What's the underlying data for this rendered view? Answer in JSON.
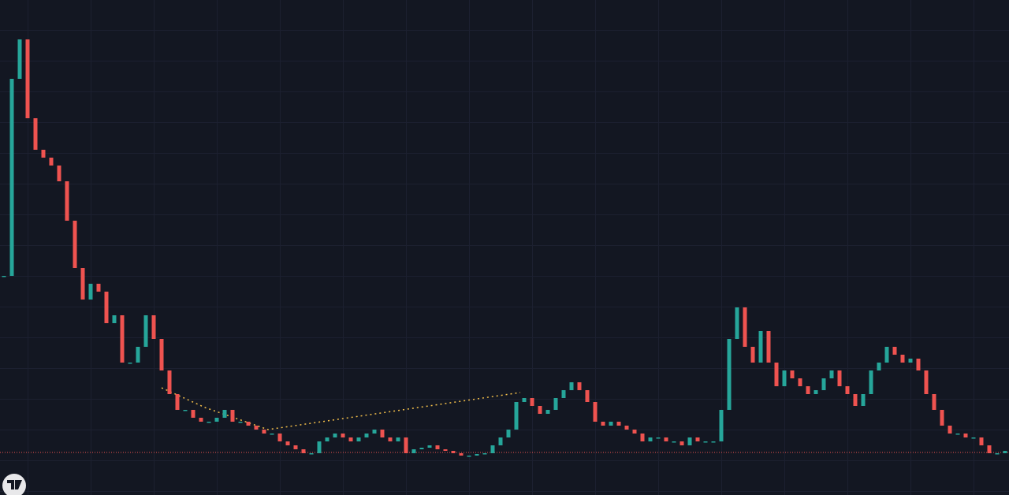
{
  "chart_data": {
    "type": "candlestick",
    "up_color": "#26a69a",
    "down_color": "#ef5350",
    "ylim": [
      0,
      628
    ],
    "price_line": 54,
    "price_line_color": "#ef5350",
    "values": [
      278,
      528,
      578,
      478,
      438,
      428,
      418,
      398,
      348,
      288,
      248,
      268,
      258,
      218,
      228,
      168,
      168,
      188,
      228,
      198,
      158,
      128,
      108,
      108,
      98,
      93,
      93,
      98,
      108,
      93,
      93,
      88,
      83,
      78,
      78,
      68,
      63,
      58,
      53,
      53,
      68,
      73,
      78,
      73,
      68,
      73,
      78,
      83,
      73,
      68,
      73,
      53,
      58,
      60,
      63,
      58,
      56,
      53,
      50,
      50,
      52,
      53,
      63,
      73,
      83,
      118,
      123,
      113,
      103,
      108,
      123,
      133,
      143,
      133,
      118,
      93,
      88,
      93,
      88,
      83,
      78,
      68,
      73,
      73,
      68,
      68,
      63,
      73,
      68,
      68,
      68,
      108,
      198,
      238,
      188,
      168,
      208,
      168,
      138,
      158,
      148,
      138,
      128,
      133,
      148,
      158,
      138,
      128,
      113,
      128,
      158,
      168,
      188,
      178,
      168,
      173,
      158,
      128,
      108,
      88,
      78,
      78,
      73,
      73,
      63,
      53,
      53,
      56
    ]
  }
}
